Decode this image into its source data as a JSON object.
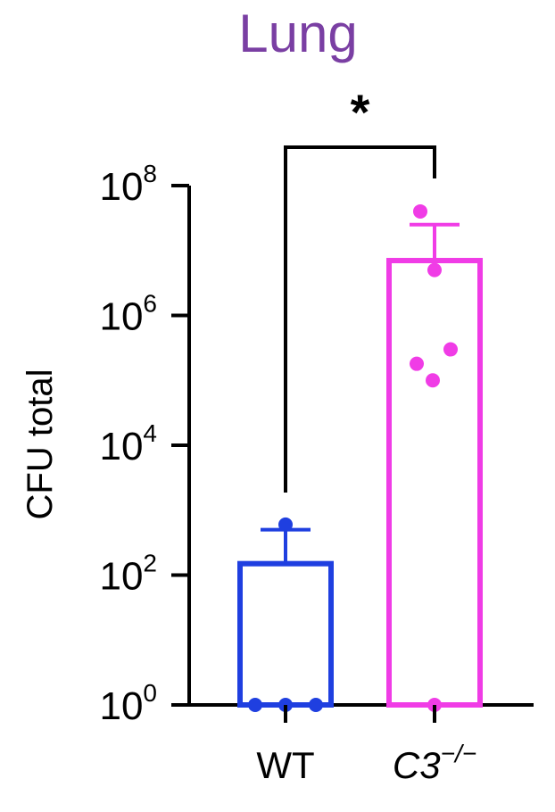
{
  "chart_data": {
    "type": "bar",
    "title": "Lung",
    "ylabel": "CFU total",
    "xlabel": "",
    "yscale": "log",
    "ylim": [
      1,
      100000000
    ],
    "yticks": [
      {
        "value": 1,
        "base": "10",
        "exp": "0"
      },
      {
        "value": 100,
        "base": "10",
        "exp": "2"
      },
      {
        "value": 10000,
        "base": "10",
        "exp": "4"
      },
      {
        "value": 1000000,
        "base": "10",
        "exp": "6"
      },
      {
        "value": 100000000,
        "base": "10",
        "exp": "8"
      }
    ],
    "categories": [
      {
        "label_main": "WT",
        "label_sup": "",
        "italic": false
      },
      {
        "label_main": "C3",
        "label_sup": "−/−",
        "italic": true
      }
    ],
    "bars": [
      {
        "mean": 150,
        "error_upper": 500,
        "color": "#1f3fe0",
        "points": [
          1,
          1,
          1,
          600
        ]
      },
      {
        "mean": 7000000,
        "error_upper": 25000000,
        "color": "#f03ce6",
        "points": [
          1,
          100000,
          180000,
          300000,
          5000000,
          40000000
        ]
      }
    ],
    "significance": {
      "label": "*",
      "between": [
        0,
        1
      ]
    },
    "colors": {
      "title": "#7a3fa3",
      "axis": "#000000"
    },
    "grid": false,
    "legend": "none"
  }
}
